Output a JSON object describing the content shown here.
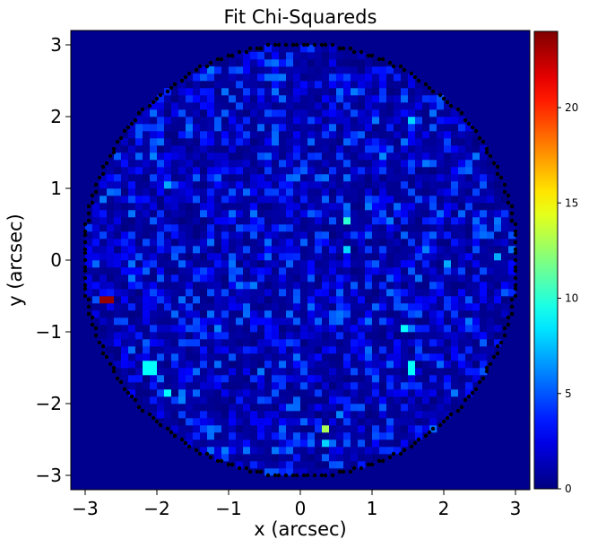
{
  "chart_data": {
    "type": "heatmap",
    "title": "Fit Chi-Squareds",
    "xlabel": "x (arcsec)",
    "ylabel": "y (arcsec)",
    "xlim": [
      -3.2,
      3.2
    ],
    "ylim": [
      -3.2,
      3.2
    ],
    "xticks": [
      -3,
      -2,
      -1,
      0,
      1,
      2,
      3
    ],
    "yticks": [
      -3,
      -2,
      -1,
      0,
      1,
      2,
      3
    ],
    "xtick_labels": [
      "−3",
      "−2",
      "−1",
      "0",
      "1",
      "2",
      "3"
    ],
    "ytick_labels": [
      "−3",
      "−2",
      "−1",
      "0",
      "1",
      "2",
      "3"
    ],
    "colormap": "jet",
    "color_range": [
      0,
      24
    ],
    "colorbar_ticks": [
      0,
      5,
      10,
      15,
      20
    ],
    "colorbar_tick_labels": [
      "0",
      "5",
      "10",
      "15",
      "20"
    ],
    "mask_radius_arcsec": 3.0,
    "pixel_scale_arcsec": 0.1,
    "mask_edge_marker_color": "#000000",
    "outside_mask_color": "#00008f",
    "hot_pixels": [
      {
        "x": -2.75,
        "y": -0.55,
        "value": 23.5
      },
      {
        "x": 0.35,
        "y": -2.35,
        "value": 13
      },
      {
        "x": -0.35,
        "y": 0.55,
        "value": 10
      },
      {
        "x": 0.65,
        "y": 0.55,
        "value": 10
      },
      {
        "x": 1.45,
        "y": -0.95,
        "value": 9
      },
      {
        "x": 1.55,
        "y": -1.55,
        "value": 9
      },
      {
        "x": -1.85,
        "y": -1.45,
        "value": 9
      },
      {
        "x": -1.85,
        "y": -1.85,
        "value": 9
      },
      {
        "x": -2.15,
        "y": -1.55,
        "value": 9
      },
      {
        "x": -1.45,
        "y": -1.55,
        "value": 9
      },
      {
        "x": 0.65,
        "y": 0.15,
        "value": 8
      },
      {
        "x": 1.55,
        "y": 1.95,
        "value": 8
      },
      {
        "x": 0.35,
        "y": -2.65,
        "value": 8
      },
      {
        "x": -0.35,
        "y": -0.85,
        "value": 8
      },
      {
        "x": -0.15,
        "y": -0.65,
        "value": 8
      },
      {
        "x": -0.35,
        "y": -1.75,
        "value": 7
      },
      {
        "x": 2.05,
        "y": -0.05,
        "value": 7
      },
      {
        "x": 2.75,
        "y": 0.05,
        "value": 7
      },
      {
        "x": -1.85,
        "y": 1.05,
        "value": 7
      },
      {
        "x": -2.05,
        "y": 0.85,
        "value": 7
      }
    ]
  }
}
